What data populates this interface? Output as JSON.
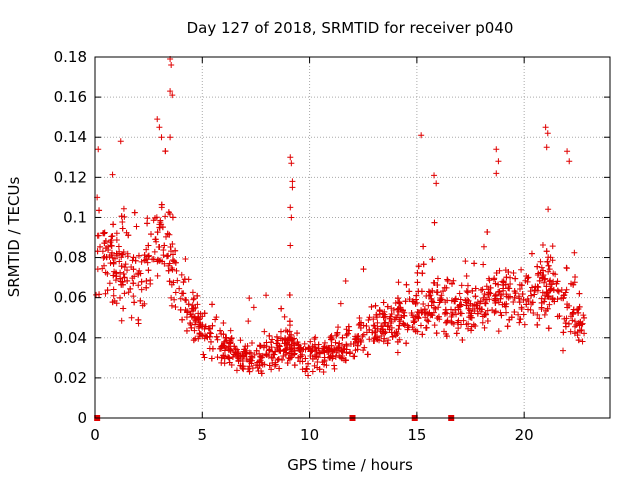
{
  "chart_data": {
    "type": "scatter",
    "title": "Day 127 of 2018, SRMTID for receiver p040",
    "xlabel": "GPS time / hours",
    "ylabel": "SRMTID / TECUs",
    "xlim": [
      0,
      24
    ],
    "ylim": [
      0,
      0.18
    ],
    "xticks": [
      {
        "value": 0,
        "label": "0"
      },
      {
        "value": 5,
        "label": "5"
      },
      {
        "value": 10,
        "label": "10"
      },
      {
        "value": 15,
        "label": "15"
      },
      {
        "value": 20,
        "label": "20"
      }
    ],
    "yticks": [
      {
        "value": 0,
        "label": "0"
      },
      {
        "value": 0.02,
        "label": "0.02"
      },
      {
        "value": 0.04,
        "label": "0.04"
      },
      {
        "value": 0.06,
        "label": "0.06"
      },
      {
        "value": 0.08,
        "label": "0.08"
      },
      {
        "value": 0.1,
        "label": "0.1"
      },
      {
        "value": 0.12,
        "label": "0.12"
      },
      {
        "value": 0.14,
        "label": "0.14"
      },
      {
        "value": 0.16,
        "label": "0.16"
      },
      {
        "value": 0.18,
        "label": "0.18"
      }
    ],
    "grid": true,
    "marker": "+",
    "color": "#e00000",
    "baseline_markers_x": [
      0.1,
      12.0,
      14.9,
      16.6
    ],
    "trend": [
      [
        0.0,
        0.085,
        0.016
      ],
      [
        1.0,
        0.08,
        0.017
      ],
      [
        2.0,
        0.07,
        0.017
      ],
      [
        3.0,
        0.088,
        0.02
      ],
      [
        3.5,
        0.085,
        0.02
      ],
      [
        4.0,
        0.06,
        0.012
      ],
      [
        5.0,
        0.045,
        0.009
      ],
      [
        6.0,
        0.037,
        0.008
      ],
      [
        7.0,
        0.03,
        0.007
      ],
      [
        8.0,
        0.03,
        0.007
      ],
      [
        9.0,
        0.038,
        0.008
      ],
      [
        10.0,
        0.03,
        0.007
      ],
      [
        11.0,
        0.033,
        0.007
      ],
      [
        12.0,
        0.038,
        0.008
      ],
      [
        13.0,
        0.043,
        0.009
      ],
      [
        14.0,
        0.048,
        0.01
      ],
      [
        15.0,
        0.055,
        0.012
      ],
      [
        16.0,
        0.06,
        0.013
      ],
      [
        17.0,
        0.053,
        0.012
      ],
      [
        18.0,
        0.055,
        0.012
      ],
      [
        19.0,
        0.062,
        0.013
      ],
      [
        20.0,
        0.058,
        0.012
      ],
      [
        21.0,
        0.07,
        0.015
      ],
      [
        22.0,
        0.058,
        0.014
      ],
      [
        22.8,
        0.05,
        0.012
      ]
    ],
    "spikes": [
      [
        0.1,
        0.11
      ],
      [
        0.15,
        0.134
      ],
      [
        1.2,
        0.138
      ],
      [
        2.9,
        0.149
      ],
      [
        3.0,
        0.145
      ],
      [
        3.1,
        0.14
      ],
      [
        3.5,
        0.179
      ],
      [
        3.55,
        0.176
      ],
      [
        3.5,
        0.163
      ],
      [
        3.6,
        0.161
      ],
      [
        3.5,
        0.14
      ],
      [
        9.1,
        0.13
      ],
      [
        9.15,
        0.127
      ],
      [
        9.2,
        0.118
      ],
      [
        9.2,
        0.115
      ],
      [
        9.1,
        0.105
      ],
      [
        9.15,
        0.1
      ],
      [
        9.1,
        0.086
      ],
      [
        15.2,
        0.141
      ],
      [
        15.8,
        0.121
      ],
      [
        15.9,
        0.117
      ],
      [
        18.7,
        0.134
      ],
      [
        18.8,
        0.128
      ],
      [
        18.7,
        0.122
      ],
      [
        21.0,
        0.145
      ],
      [
        21.1,
        0.142
      ],
      [
        21.05,
        0.135
      ],
      [
        22.0,
        0.133
      ],
      [
        22.1,
        0.128
      ]
    ],
    "series": [
      {
        "name": "SRMTID",
        "n_points": 1800
      }
    ]
  }
}
